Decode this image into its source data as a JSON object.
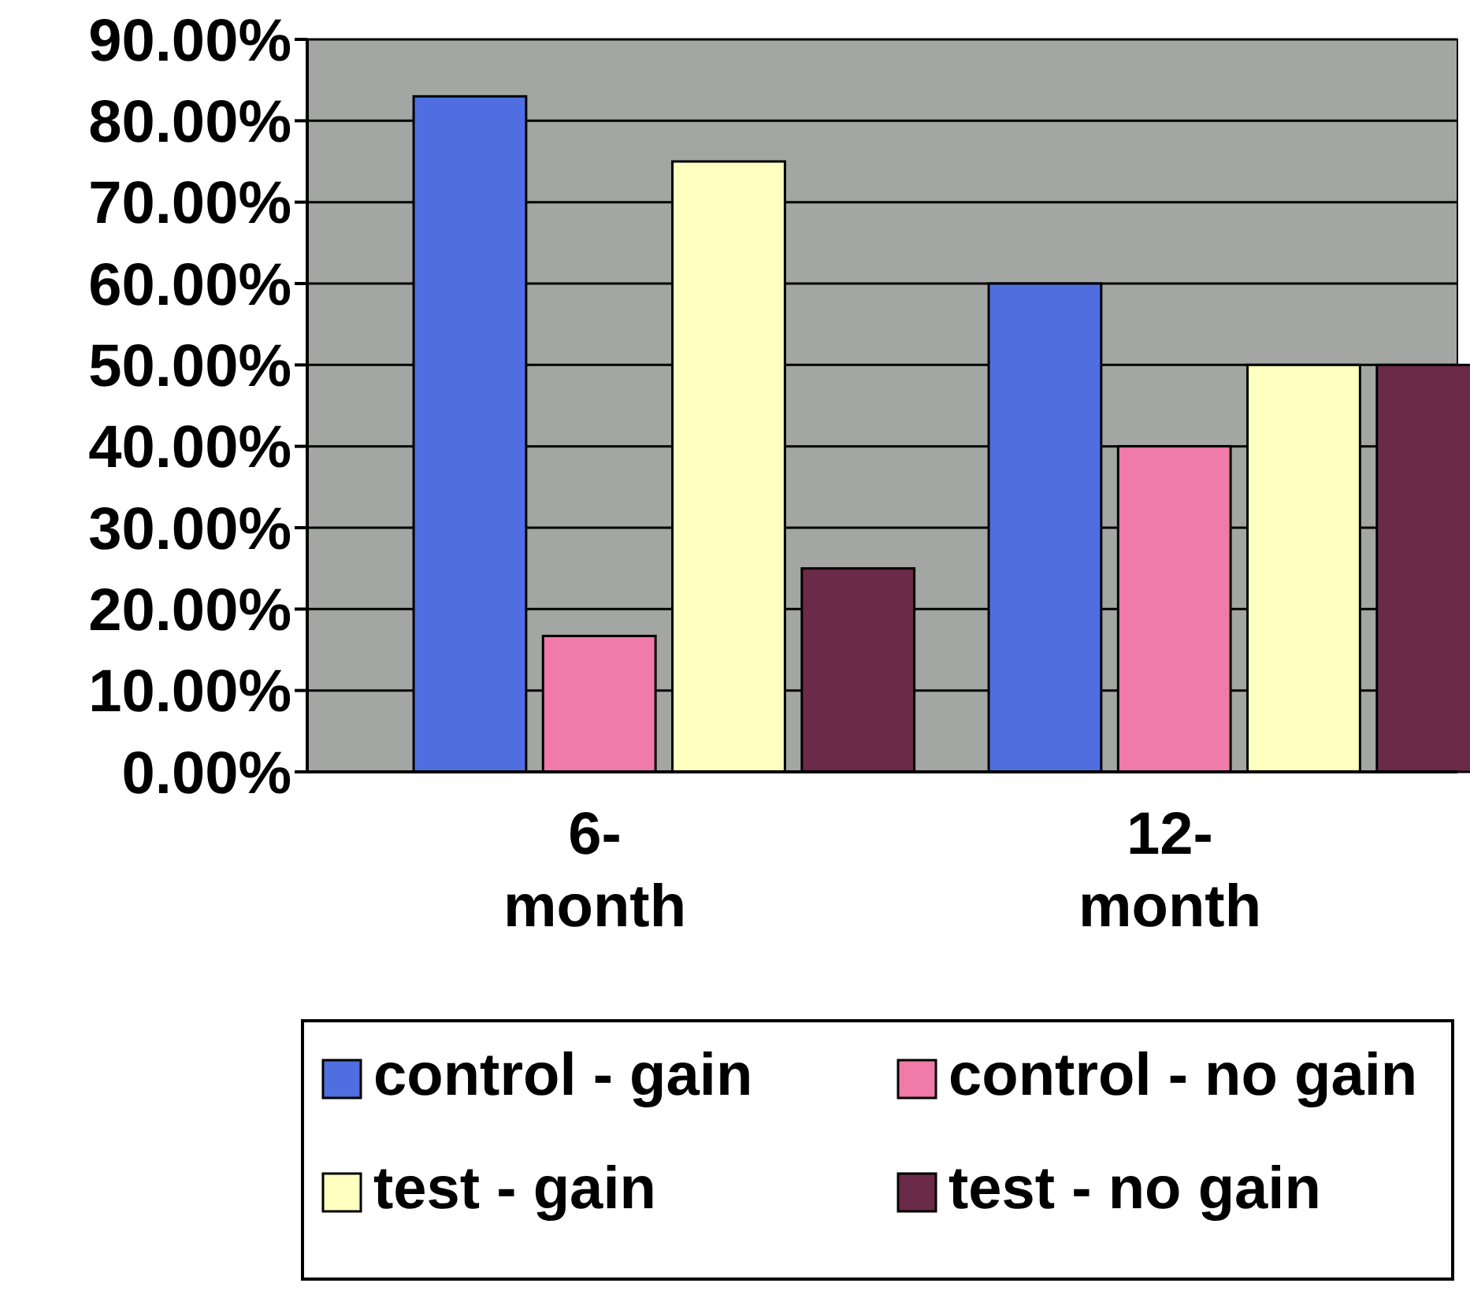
{
  "chart_data": {
    "type": "bar",
    "categories": [
      "6-month",
      "12-month"
    ],
    "series": [
      {
        "name": "control - gain",
        "color": "#4f6fe0",
        "values": [
          83,
          60
        ]
      },
      {
        "name": "control - no gain",
        "color": "#f07aa8",
        "values": [
          16.7,
          40
        ]
      },
      {
        "name": "test - gain",
        "color": "#ffffc0",
        "values": [
          75,
          50
        ]
      },
      {
        "name": "test - no gain",
        "color": "#6a2a48",
        "values": [
          25,
          50
        ]
      }
    ],
    "ylim": [
      0,
      90
    ],
    "yticks": [
      {
        "value": 0,
        "label": "0.00%"
      },
      {
        "value": 10,
        "label": "10.00%"
      },
      {
        "value": 20,
        "label": "20.00%"
      },
      {
        "value": 30,
        "label": "30.00%"
      },
      {
        "value": 40,
        "label": "40.00%"
      },
      {
        "value": 50,
        "label": "50.00%"
      },
      {
        "value": 60,
        "label": "60.00%"
      },
      {
        "value": 70,
        "label": "70.00%"
      },
      {
        "value": 80,
        "label": "80.00%"
      },
      {
        "value": 90,
        "label": "90.00%"
      }
    ],
    "grid": "y",
    "legend": "bottom"
  }
}
